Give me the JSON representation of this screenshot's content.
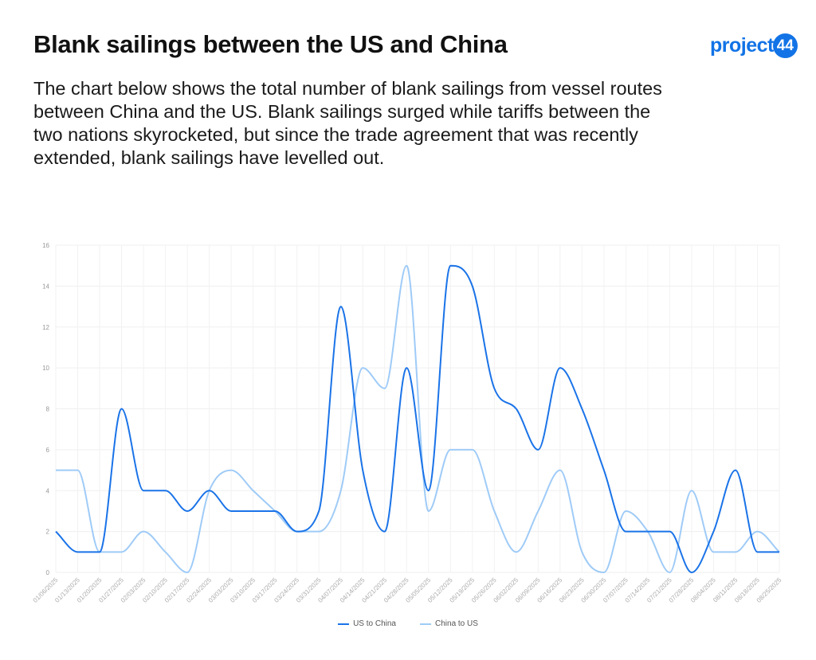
{
  "header": {
    "title": "Blank sailings between the US and China",
    "description": "The chart below shows the total number of blank sailings from vessel routes between China and the US. Blank sailings surged while tariffs between the two nations skyrocketed, but since the trade agreement that was recently extended, blank sailings have levelled out.",
    "logo_word": "project",
    "logo_badge": "44"
  },
  "chart_data": {
    "type": "line",
    "title": "Blank sailings between the US and China",
    "xlabel": "",
    "ylabel": "",
    "ylim": [
      0,
      16
    ],
    "yticks": [
      0,
      2,
      4,
      6,
      8,
      10,
      12,
      14,
      16
    ],
    "grid": true,
    "legend_position": "bottom",
    "x": [
      "01/06/2025",
      "01/13/2025",
      "01/20/2025",
      "01/27/2025",
      "02/03/2025",
      "02/10/2025",
      "02/17/2025",
      "02/24/2025",
      "03/03/2025",
      "03/10/2025",
      "03/17/2025",
      "03/24/2025",
      "03/31/2025",
      "04/07/2025",
      "04/14/2025",
      "04/21/2025",
      "04/28/2025",
      "05/05/2025",
      "05/12/2025",
      "05/19/2025",
      "05/26/2025",
      "06/02/2025",
      "06/09/2025",
      "06/16/2025",
      "06/23/2025",
      "06/30/2025",
      "07/07/2025",
      "07/14/2025",
      "07/21/2025",
      "07/28/2025",
      "08/04/2025",
      "08/11/2025",
      "08/18/2025",
      "08/25/2025"
    ],
    "series": [
      {
        "name": "US to China",
        "color": "#1a73e8",
        "values": [
          2,
          1,
          1,
          8,
          4,
          4,
          3,
          4,
          3,
          3,
          3,
          2,
          3,
          13,
          5,
          2,
          10,
          4,
          15,
          14,
          9,
          8,
          6,
          10,
          8,
          5,
          2,
          2,
          2,
          0,
          2,
          5,
          1,
          1
        ]
      },
      {
        "name": "China to US",
        "color": "#9fcbf7",
        "values": [
          5,
          5,
          1,
          1,
          2,
          1,
          0,
          4,
          5,
          4,
          3,
          2,
          2,
          4,
          10,
          9,
          15,
          3,
          6,
          6,
          3,
          1,
          3,
          5,
          1,
          0,
          3,
          2,
          0,
          4,
          1,
          1,
          2,
          1
        ]
      }
    ]
  }
}
